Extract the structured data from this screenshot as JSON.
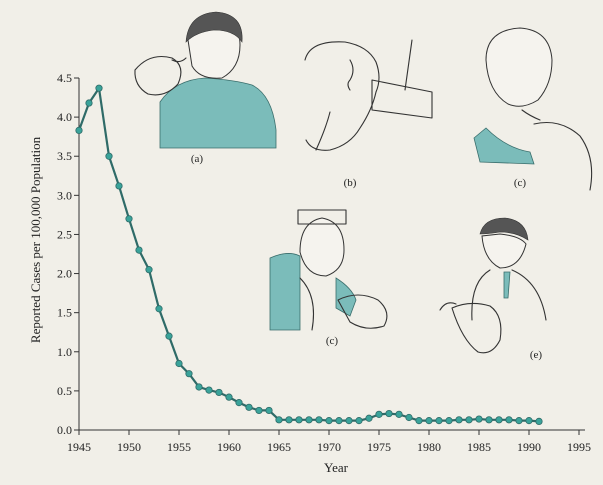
{
  "chart_data": {
    "type": "line",
    "title": "",
    "xlabel": "Year",
    "ylabel": "Reported Cases per 100,000 Population",
    "xlim": [
      1945,
      1995
    ],
    "ylim": [
      0,
      4.5
    ],
    "x_ticks": [
      "1945",
      "1950",
      "1955",
      "1960",
      "1965",
      "1970",
      "1975",
      "1980",
      "1985",
      "1990",
      "1995"
    ],
    "y_ticks": [
      "0.0",
      "0.5",
      "1.0",
      "1.5",
      "2.0",
      "2.5",
      "3.0",
      "3.5",
      "4.0",
      "4.5"
    ],
    "grid": false,
    "legend": "none",
    "line_color": "#2f6b68",
    "marker_color": "#3aa39a",
    "series": [
      {
        "x": [
          1945,
          1946,
          1947,
          1948,
          1949,
          1950,
          1951,
          1952,
          1953,
          1954,
          1955,
          1956,
          1957,
          1958,
          1959,
          1960,
          1961,
          1962,
          1963,
          1964,
          1965,
          1966,
          1967,
          1968,
          1969,
          1970,
          1971,
          1972,
          1973,
          1974,
          1975,
          1976,
          1977,
          1978,
          1979,
          1980,
          1981,
          1982,
          1983,
          1984,
          1985,
          1986,
          1987,
          1988,
          1989,
          1990,
          1991
        ],
        "y": [
          3.83,
          4.18,
          4.37,
          3.5,
          3.12,
          2.7,
          2.3,
          2.05,
          1.55,
          1.2,
          0.85,
          0.72,
          0.55,
          0.51,
          0.48,
          0.42,
          0.35,
          0.29,
          0.25,
          0.25,
          0.13,
          0.13,
          0.13,
          0.13,
          0.13,
          0.12,
          0.12,
          0.12,
          0.12,
          0.15,
          0.2,
          0.21,
          0.2,
          0.16,
          0.12,
          0.12,
          0.12,
          0.12,
          0.13,
          0.13,
          0.14,
          0.13,
          0.13,
          0.13,
          0.12,
          0.12,
          0.11
        ]
      }
    ]
  },
  "illustrations": {
    "panels": [
      {
        "label": "(a)"
      },
      {
        "label": "(b)"
      },
      {
        "label": "(c)"
      },
      {
        "label": "(c)"
      },
      {
        "label": "(e)"
      }
    ]
  }
}
